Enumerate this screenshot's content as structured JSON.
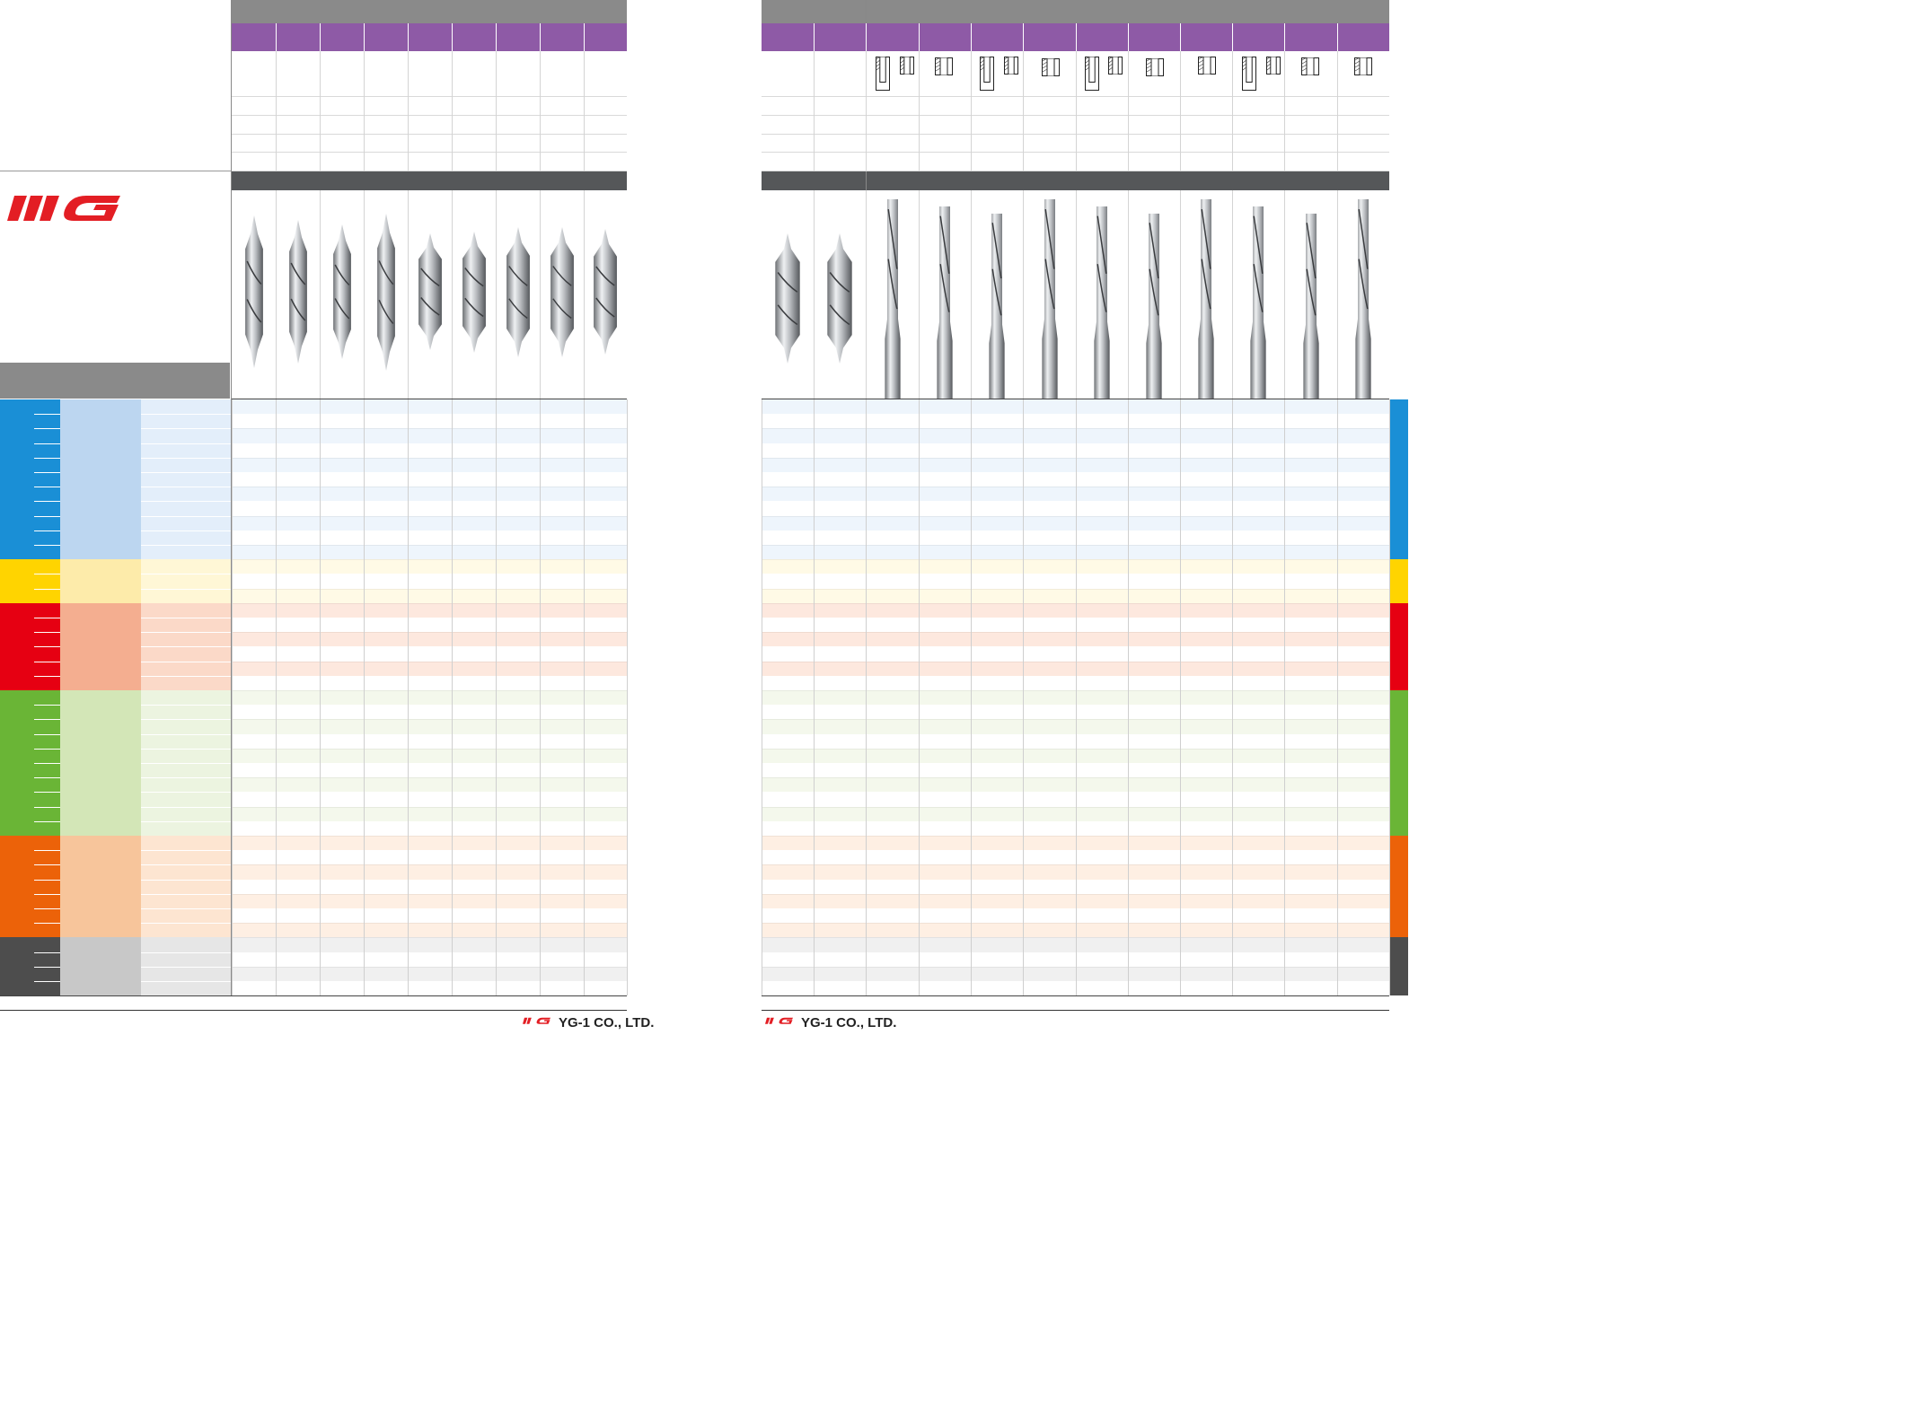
{
  "brand": {
    "logo_text": "YG",
    "logo_color": "#e31e24",
    "footer_text": "YG-1 CO., LTD."
  },
  "colors": {
    "header_gray": "#8a8a8a",
    "header_purple": "#8e5aa6",
    "header_dark": "#555759"
  },
  "material_groups": [
    {
      "id": "P",
      "color": "#1a8fd6",
      "light": "#bcd6f0",
      "lighter": "#e3eefa",
      "rows": 11
    },
    {
      "id": "M",
      "color": "#ffd400",
      "light": "#fdebaa",
      "lighter": "#fff7d6",
      "rows": 3
    },
    {
      "id": "K",
      "color": "#e60012",
      "light": "#f4ae90",
      "lighter": "#fbd9c8",
      "rows": 6
    },
    {
      "id": "N",
      "color": "#6ab536",
      "light": "#d3e6b7",
      "lighter": "#ecf4e0",
      "rows": 10
    },
    {
      "id": "S",
      "color": "#ec6209",
      "light": "#f7c59b",
      "lighter": "#fde5d1",
      "rows": 7
    },
    {
      "id": "H",
      "color": "#4d4d4d",
      "light": "#c8c8c8",
      "lighter": "#e6e6e6",
      "rows": 4
    }
  ],
  "tools_left": [
    "center-drill-1",
    "center-drill-2",
    "center-drill-3",
    "center-drill-4",
    "center-drill-5",
    "center-drill-6",
    "center-drill-7",
    "center-drill-8",
    "center-drill-9"
  ],
  "tools_right_group1": [
    "center-drill-a",
    "center-drill-b"
  ],
  "tools_right_group2": [
    "reamer-1",
    "reamer-2",
    "reamer-3",
    "reamer-4",
    "reamer-5",
    "reamer-6",
    "reamer-7",
    "reamer-8",
    "reamer-9",
    "reamer-10"
  ]
}
